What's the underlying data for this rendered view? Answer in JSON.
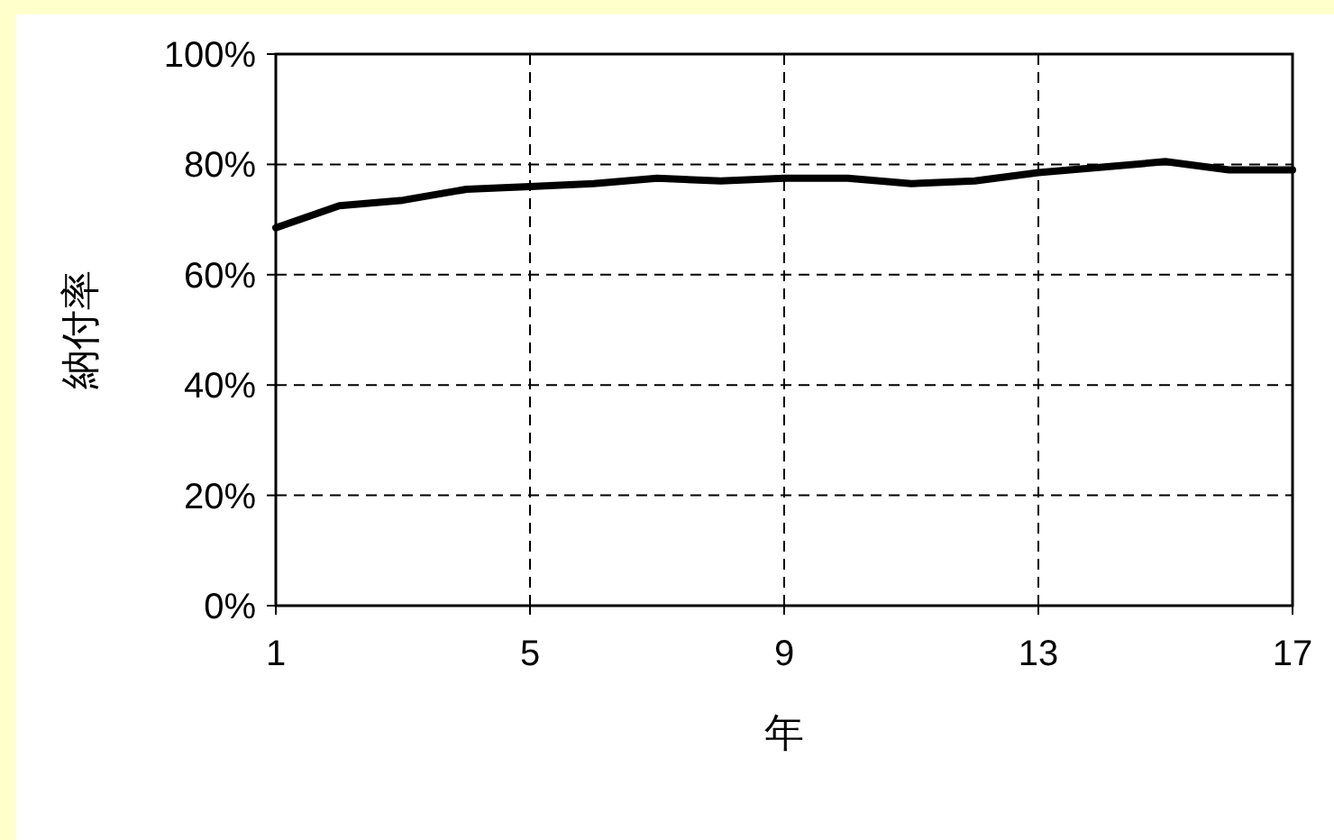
{
  "chart_data": {
    "type": "line",
    "xlabel": "年",
    "ylabel": "納付率",
    "x": [
      1,
      2,
      3,
      4,
      5,
      6,
      7,
      8,
      9,
      10,
      11,
      12,
      13,
      14,
      15,
      16,
      17
    ],
    "series": [
      {
        "color": "#000000",
        "values": [
          68.5,
          72.5,
          73.5,
          75.5,
          76,
          76.5,
          77.5,
          77,
          77.5,
          77.5,
          76.5,
          77,
          78.5,
          79.5,
          80.5,
          79,
          79
        ]
      }
    ],
    "xlim": [
      1,
      17
    ],
    "xticks": [
      1,
      5,
      9,
      13,
      17
    ],
    "ylim": [
      0,
      100
    ],
    "yticks": [
      {
        "value": 0,
        "label": "0%"
      },
      {
        "value": 20,
        "label": "20%"
      },
      {
        "value": 40,
        "label": "40%"
      },
      {
        "value": 60,
        "label": "60%"
      },
      {
        "value": 80,
        "label": "80%"
      },
      {
        "value": 100,
        "label": "100%"
      }
    ],
    "grid": true,
    "line_style": "solid",
    "marker": "none"
  }
}
